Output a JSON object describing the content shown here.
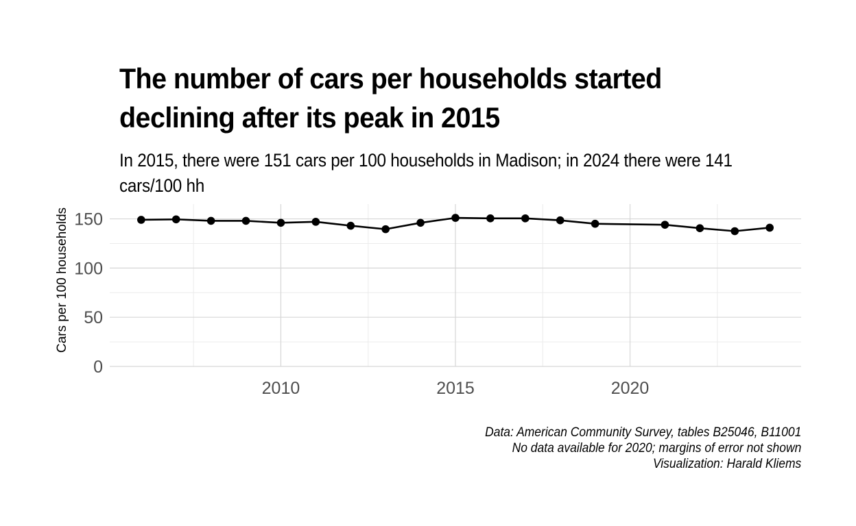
{
  "chart_data": {
    "type": "line",
    "title": "The number of cars per households started declining after its peak in 2015",
    "subtitle": "In 2015, there were 151 cars per 100 households in Madison; in 2024 there were 141 cars/100 hh",
    "xlabel": "",
    "ylabel": "Cars per 100 households",
    "xlim": [
      2005.1,
      2024.9
    ],
    "ylim": [
      0,
      165
    ],
    "x_ticks": [
      2010,
      2015,
      2020
    ],
    "y_ticks": [
      0,
      50,
      100,
      150
    ],
    "grid": true,
    "legend": "none",
    "series": [
      {
        "color": "#000000",
        "x": [
          2006,
          2007,
          2008,
          2009,
          2010,
          2011,
          2012,
          2013,
          2014,
          2015,
          2016,
          2017,
          2018,
          2019,
          2021,
          2022,
          2023,
          2024
        ],
        "values": [
          149,
          149.5,
          148,
          148,
          146,
          147,
          143,
          139.5,
          146,
          151,
          150.5,
          150.5,
          148.5,
          145,
          144,
          140.5,
          137.5,
          141
        ]
      }
    ],
    "caption": [
      "Data: American Community Survey, tables B25046, B11001",
      "No data available for 2020; margins of error not shown",
      "Visualization: Harald Kliems"
    ]
  }
}
